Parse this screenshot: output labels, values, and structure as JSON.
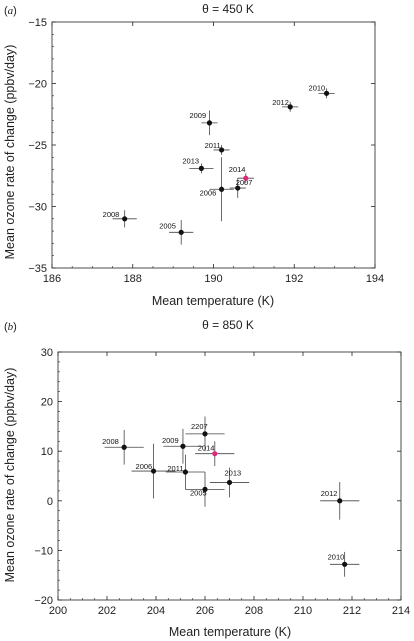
{
  "chart_data": [
    {
      "type": "scatter",
      "panel": "(a)",
      "title": "θ = 450 K",
      "xlabel": "Mean temperature (K)",
      "ylabel": "Mean ozone rate of change (ppbv/day)",
      "xlim": [
        186,
        194
      ],
      "ylim": [
        -35,
        -15
      ],
      "xticks": [
        "186",
        "188",
        "190",
        "192",
        "194"
      ],
      "yticks": [
        "-35",
        "-30",
        "-25",
        "-20",
        "-15"
      ],
      "points": [
        {
          "label": "2005",
          "x": 189.2,
          "y": -32.1,
          "xerr": 0.3,
          "yerr": 1.0,
          "highlight": false
        },
        {
          "label": "2006",
          "x": 190.2,
          "y": -28.6,
          "xerr": 0.3,
          "yerr": 2.6,
          "highlight": false
        },
        {
          "label": "2007",
          "x": 190.6,
          "y": -28.5,
          "xerr": 0.2,
          "yerr": 0.8,
          "highlight": false
        },
        {
          "label": "2008",
          "x": 187.8,
          "y": -31.0,
          "xerr": 0.3,
          "yerr": 0.7,
          "highlight": false
        },
        {
          "label": "2009",
          "x": 189.9,
          "y": -23.2,
          "xerr": 0.2,
          "yerr": 1.0,
          "highlight": false
        },
        {
          "label": "2010",
          "x": 192.8,
          "y": -20.8,
          "xerr": 0.2,
          "yerr": 0.4,
          "highlight": false
        },
        {
          "label": "2011",
          "x": 190.2,
          "y": -25.4,
          "xerr": 0.2,
          "yerr": 0.4,
          "highlight": false
        },
        {
          "label": "2012",
          "x": 191.9,
          "y": -21.9,
          "xerr": 0.2,
          "yerr": 0.4,
          "highlight": false
        },
        {
          "label": "2013",
          "x": 189.7,
          "y": -26.9,
          "xerr": 0.3,
          "yerr": 0.4,
          "highlight": false
        },
        {
          "label": "2014",
          "x": 190.8,
          "y": -27.7,
          "xerr": 0.2,
          "yerr": 0.4,
          "highlight": true
        }
      ]
    },
    {
      "type": "scatter",
      "panel": "(b)",
      "title": "θ = 850 K",
      "xlabel": "Mean temperature (K)",
      "ylabel": "Mean ozone rate of change (ppbv/day)",
      "xlim": [
        200,
        214
      ],
      "ylim": [
        -20,
        30
      ],
      "xticks": [
        "200",
        "202",
        "204",
        "206",
        "208",
        "210",
        "212",
        "214"
      ],
      "yticks": [
        "-20",
        "-10",
        "0",
        "10",
        "20",
        "30"
      ],
      "points": [
        {
          "label": "2005",
          "x": 206.0,
          "y": 2.3,
          "xerr": 0.8,
          "yerr": 3.5,
          "highlight": false
        },
        {
          "label": "2006",
          "x": 203.9,
          "y": 6.0,
          "xerr": 0.9,
          "yerr": 5.5,
          "highlight": false
        },
        {
          "label": "2207",
          "x": 206.0,
          "y": 13.5,
          "xerr": 0.8,
          "yerr": 3.5,
          "highlight": false
        },
        {
          "label": "2008",
          "x": 202.7,
          "y": 10.8,
          "xerr": 0.8,
          "yerr": 3.5,
          "highlight": false
        },
        {
          "label": "2009",
          "x": 205.1,
          "y": 11.0,
          "xerr": 0.8,
          "yerr": 3.5,
          "highlight": false
        },
        {
          "label": "2010",
          "x": 211.7,
          "y": -12.8,
          "xerr": 0.6,
          "yerr": 2.5,
          "highlight": false
        },
        {
          "label": "2011",
          "x": 205.2,
          "y": 5.8,
          "xerr": 0.8,
          "yerr": 3.5,
          "highlight": false
        },
        {
          "label": "2012",
          "x": 211.5,
          "y": 0.0,
          "xerr": 0.8,
          "yerr": 3.8,
          "highlight": false
        },
        {
          "label": "2013",
          "x": 207.0,
          "y": 3.7,
          "xerr": 0.8,
          "yerr": 3.0,
          "highlight": false
        },
        {
          "label": "2014",
          "x": 206.4,
          "y": 9.5,
          "xerr": 0.8,
          "yerr": 2.5,
          "highlight": true
        }
      ]
    }
  ],
  "colors": {
    "point": "#111111",
    "highlight": "#e0287a",
    "errorbar": "#444444",
    "axis": "#222222"
  }
}
